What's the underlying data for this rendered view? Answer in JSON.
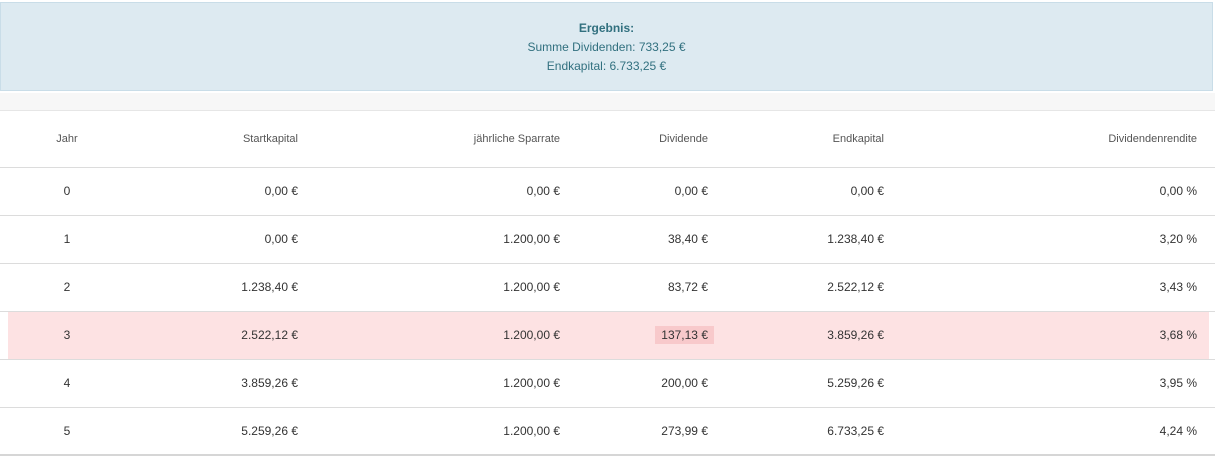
{
  "result": {
    "title": "Ergebnis:",
    "sum_dividends": "Summe Dividenden: 733,25 €",
    "end_capital": "Endkapital: 6.733,25 €"
  },
  "table": {
    "headers": {
      "year": "Jahr",
      "start_capital": "Startkapital",
      "annual_savings": "jährliche Sparrate",
      "dividend": "Dividende",
      "end_capital": "Endkapital",
      "dividend_yield": "Dividendenrendite"
    },
    "rows": [
      {
        "year": "0",
        "start_capital": "0,00 €",
        "annual_savings": "0,00 €",
        "dividend": "0,00 €",
        "end_capital": "0,00 €",
        "dividend_yield": "0,00 %"
      },
      {
        "year": "1",
        "start_capital": "0,00 €",
        "annual_savings": "1.200,00 €",
        "dividend": "38,40 €",
        "end_capital": "1.238,40 €",
        "dividend_yield": "3,20 %"
      },
      {
        "year": "2",
        "start_capital": "1.238,40 €",
        "annual_savings": "1.200,00 €",
        "dividend": "83,72 €",
        "end_capital": "2.522,12 €",
        "dividend_yield": "3,43 %"
      },
      {
        "year": "3",
        "start_capital": "2.522,12 €",
        "annual_savings": "1.200,00 €",
        "dividend": "137,13 €",
        "end_capital": "3.859,26 €",
        "dividend_yield": "3,68 %"
      },
      {
        "year": "4",
        "start_capital": "3.859,26 €",
        "annual_savings": "1.200,00 €",
        "dividend": "200,00 €",
        "end_capital": "5.259,26 €",
        "dividend_yield": "3,95 %"
      },
      {
        "year": "5",
        "start_capital": "5.259,26 €",
        "annual_savings": "1.200,00 €",
        "dividend": "273,99 €",
        "end_capital": "6.733,25 €",
        "dividend_yield": "4,24 %"
      }
    ],
    "highlighted_row": 3
  },
  "colors": {
    "result_background": "#ddeaf1",
    "result_text": "#31707f",
    "highlight_row": "#fde2e3",
    "highlight_cell": "#f8c9cb"
  }
}
